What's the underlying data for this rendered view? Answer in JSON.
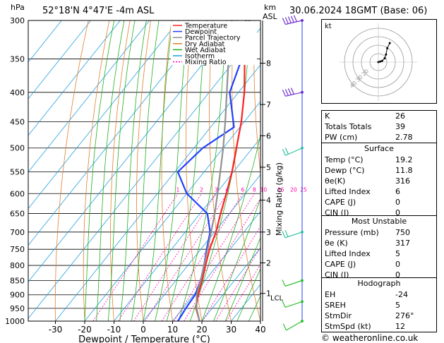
{
  "header": {
    "hpa_unit": "hPa",
    "location": "52°18'N  4°47'E  -4m  ASL",
    "km_unit": "km",
    "asl_unit": "ASL",
    "datetime": "30.06.2024  18GMT  (Base: 06)"
  },
  "chart_data": {
    "type": "line",
    "xlabel": "Dewpoint / Temperature (°C)",
    "ylabel": "Mixing Ratio (g/kg)",
    "x_ticks": [
      -30,
      -20,
      -10,
      0,
      10,
      20,
      30,
      40
    ],
    "pressure_levels": [
      300,
      350,
      400,
      450,
      500,
      550,
      600,
      650,
      700,
      750,
      800,
      850,
      900,
      950,
      1000
    ],
    "km_ticks": [
      {
        "label": "8",
        "p": 356
      },
      {
        "label": "7",
        "p": 420
      },
      {
        "label": "6",
        "p": 476
      },
      {
        "label": "5",
        "p": 540
      },
      {
        "label": "4",
        "p": 616
      },
      {
        "label": "3",
        "p": 700
      },
      {
        "label": "2",
        "p": 792
      },
      {
        "label": "1",
        "p": 895
      }
    ],
    "lcl_label": "LCL",
    "lcl_p": 900,
    "mixing_ratio_labels": [
      "1",
      "2",
      "3",
      "4",
      "6",
      "8",
      "10",
      "15",
      "20",
      "25"
    ],
    "mixing_ratio_values": [
      1,
      2,
      3,
      4,
      6,
      8,
      10,
      15,
      20,
      25
    ],
    "legend": [
      "Temperature",
      "Dewpoint",
      "Parcel Trajectory",
      "Dry Adiabat",
      "Wet Adiabat",
      "Isotherm",
      "Mixing Ratio"
    ],
    "legend_placement": "top-right",
    "colors": {
      "temperature": "#ff2020",
      "dewpoint": "#2040ff",
      "parcel": "#909090",
      "dry_adiabat": "#e08030",
      "wet_adiabat": "#20b020",
      "isotherm": "#20a0e0",
      "mixing_ratio": "#ff00b0",
      "wind": "#30c030"
    },
    "series": [
      {
        "name": "Temperature",
        "points": [
          [
            1000,
            19.2
          ],
          [
            950,
            14.5
          ],
          [
            900,
            11.5
          ],
          [
            850,
            9.0
          ],
          [
            800,
            6.0
          ],
          [
            750,
            3.0
          ],
          [
            700,
            0.5
          ],
          [
            650,
            -3.0
          ],
          [
            600,
            -6.5
          ],
          [
            550,
            -10.5
          ],
          [
            500,
            -15.5
          ],
          [
            450,
            -21.0
          ],
          [
            400,
            -28.0
          ],
          [
            350,
            -37.0
          ],
          [
            300,
            -46.0
          ]
        ]
      },
      {
        "name": "Dewpoint",
        "points": [
          [
            1000,
            11.8
          ],
          [
            950,
            11.0
          ],
          [
            900,
            10.5
          ],
          [
            850,
            8.5
          ],
          [
            800,
            5.5
          ],
          [
            750,
            2.0
          ],
          [
            700,
            -1.5
          ],
          [
            650,
            -7.5
          ],
          [
            600,
            -20.0
          ],
          [
            550,
            -29.0
          ],
          [
            500,
            -27.0
          ],
          [
            460,
            -22.0
          ],
          [
            400,
            -33.0
          ],
          [
            350,
            -38.0
          ],
          [
            300,
            -47.0
          ]
        ]
      },
      {
        "name": "Parcel Trajectory",
        "points": [
          [
            1000,
            19.2
          ],
          [
            950,
            14.7
          ],
          [
            900,
            11.0
          ],
          [
            850,
            8.5
          ],
          [
            800,
            5.5
          ],
          [
            750,
            2.3
          ],
          [
            700,
            -1.2
          ],
          [
            650,
            -5.0
          ],
          [
            600,
            -9.5
          ],
          [
            550,
            -14.5
          ],
          [
            500,
            -20.0
          ],
          [
            450,
            -26.5
          ],
          [
            400,
            -34.0
          ],
          [
            350,
            -42.5
          ],
          [
            300,
            -52.0
          ]
        ]
      }
    ],
    "wind_barbs": [
      {
        "p": 300,
        "dir": 280,
        "kt": 50
      },
      {
        "p": 400,
        "dir": 280,
        "kt": 40
      },
      {
        "p": 500,
        "dir": 260,
        "kt": 20
      },
      {
        "p": 700,
        "dir": 270,
        "kt": 15
      },
      {
        "p": 850,
        "dir": 270,
        "kt": 10
      },
      {
        "p": 925,
        "dir": 270,
        "kt": 10
      },
      {
        "p": 1000,
        "dir": 250,
        "kt": 10
      }
    ]
  },
  "hodograph": {
    "unit": "kt",
    "ring_labels": [
      "20",
      "30",
      "40"
    ],
    "trace": [
      [
        0,
        0
      ],
      [
        3,
        1
      ],
      [
        6,
        2
      ],
      [
        10,
        6
      ],
      [
        12,
        12
      ],
      [
        14,
        22
      ],
      [
        18,
        30
      ]
    ]
  },
  "indices": {
    "rows": [
      {
        "label": "K",
        "value": "26"
      },
      {
        "label": "Totals Totals",
        "value": "39"
      },
      {
        "label": "PW (cm)",
        "value": "2.78"
      }
    ]
  },
  "surface": {
    "title": "Surface",
    "rows": [
      {
        "label": "Temp (°C)",
        "value": "19.2"
      },
      {
        "label": "Dewp (°C)",
        "value": "11.8"
      },
      {
        "label": "θe(K)",
        "value": "316"
      },
      {
        "label": "Lifted Index",
        "value": "6"
      },
      {
        "label": "CAPE (J)",
        "value": "0"
      },
      {
        "label": "CIN (J)",
        "value": "0"
      }
    ]
  },
  "most_unstable": {
    "title": "Most Unstable",
    "rows": [
      {
        "label": "Pressure (mb)",
        "value": "750"
      },
      {
        "label": "θe (K)",
        "value": "317"
      },
      {
        "label": "Lifted Index",
        "value": "5"
      },
      {
        "label": "CAPE (J)",
        "value": "0"
      },
      {
        "label": "CIN (J)",
        "value": "0"
      }
    ]
  },
  "hodograph_table": {
    "title": "Hodograph",
    "rows": [
      {
        "label": "EH",
        "value": "-24"
      },
      {
        "label": "SREH",
        "value": "5"
      },
      {
        "label": "StmDir",
        "value": "276°"
      },
      {
        "label": "StmSpd (kt)",
        "value": "12"
      }
    ]
  },
  "copyright": "© weatheronline.co.uk"
}
